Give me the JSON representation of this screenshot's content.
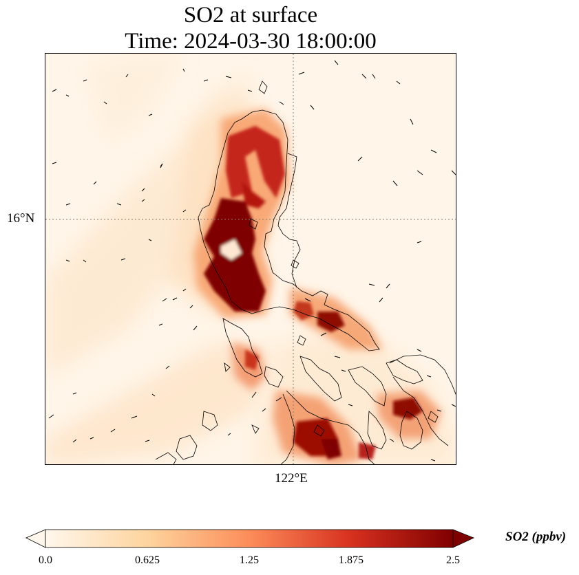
{
  "title": {
    "line1": "SO2 at surface",
    "line2": "Time: 2024-03-30 18:00:00"
  },
  "map": {
    "lat_tick_label": "16°N",
    "lon_tick_label": "122°E",
    "gridline_style": "dotted"
  },
  "colorbar": {
    "label": "SO2 (ppbv)",
    "ticks": [
      "0.0",
      "0.625",
      "1.25",
      "1.875",
      "2.5"
    ],
    "min": 0.0,
    "max": 2.5,
    "colormap": "OrRd",
    "colors": [
      "#fff7ec",
      "#fdd49e",
      "#fc8d59",
      "#d7301f",
      "#7f0000"
    ]
  }
}
